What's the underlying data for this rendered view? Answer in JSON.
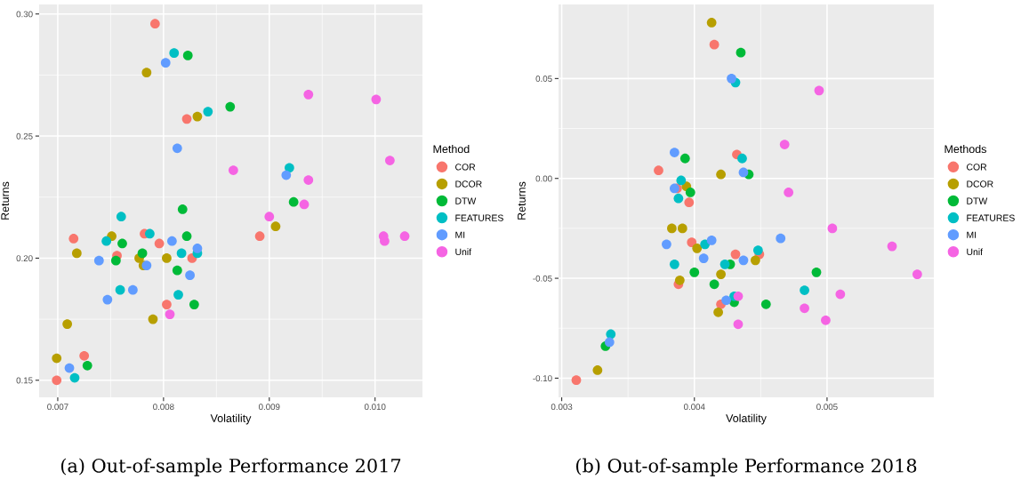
{
  "chart_data": [
    {
      "type": "scatter",
      "title": "(a) Out-of-sample Performance 2017",
      "xlabel": "Volatility",
      "ylabel": "Returns",
      "legend_title": "Method",
      "legend": "right",
      "grid": true,
      "marker": "circle",
      "xlim": [
        0.006824,
        0.010448
      ],
      "ylim": [
        0.143,
        0.3039
      ],
      "xticks": [
        {
          "value": 0.007,
          "label": "0.007"
        },
        {
          "value": 0.008,
          "label": "0.008"
        },
        {
          "value": 0.009,
          "label": "0.009"
        },
        {
          "value": 0.01,
          "label": "0.010"
        }
      ],
      "yticks": [
        {
          "value": 0.15,
          "label": "0.15"
        },
        {
          "value": 0.2,
          "label": "0.20"
        },
        {
          "value": 0.25,
          "label": "0.25"
        },
        {
          "value": 0.3,
          "label": "0.30"
        }
      ],
      "series": [
        {
          "name": "COR",
          "color": "#f8766d",
          "x": [
            0.00792,
            0.00822,
            0.00715,
            0.00782,
            0.00796,
            0.00756,
            0.00827,
            0.00803,
            0.00725,
            0.00699,
            0.00891
          ],
          "values": [
            0.296,
            0.257,
            0.208,
            0.21,
            0.206,
            0.201,
            0.2,
            0.181,
            0.16,
            0.15,
            0.209
          ]
        },
        {
          "name": "DCOR",
          "color": "#b79f00",
          "x": [
            0.00784,
            0.00832,
            0.00751,
            0.00718,
            0.00777,
            0.00781,
            0.00803,
            0.0079,
            0.00709,
            0.00699,
            0.00906
          ],
          "values": [
            0.276,
            0.258,
            0.209,
            0.202,
            0.2,
            0.197,
            0.2,
            0.175,
            0.173,
            0.159,
            0.213
          ]
        },
        {
          "name": "DTW",
          "color": "#00ba38",
          "x": [
            0.00823,
            0.00818,
            0.00822,
            0.00761,
            0.0078,
            0.00755,
            0.00813,
            0.00829,
            0.00728,
            0.00863,
            0.00923
          ],
          "values": [
            0.283,
            0.22,
            0.209,
            0.206,
            0.202,
            0.199,
            0.195,
            0.181,
            0.156,
            0.262,
            0.223
          ]
        },
        {
          "name": "FEATURES",
          "color": "#00bfc4",
          "x": [
            0.0081,
            0.00842,
            0.0076,
            0.00746,
            0.00787,
            0.00817,
            0.00832,
            0.00759,
            0.00814,
            0.00716,
            0.00919
          ],
          "values": [
            0.284,
            0.26,
            0.217,
            0.207,
            0.21,
            0.202,
            0.202,
            0.187,
            0.185,
            0.151,
            0.237
          ]
        },
        {
          "name": "MI",
          "color": "#619cff",
          "x": [
            0.00802,
            0.00813,
            0.00808,
            0.00832,
            0.00739,
            0.00784,
            0.00771,
            0.00747,
            0.00825,
            0.00711,
            0.00916
          ],
          "values": [
            0.28,
            0.245,
            0.207,
            0.204,
            0.199,
            0.197,
            0.187,
            0.183,
            0.193,
            0.155,
            0.234
          ]
        },
        {
          "name": "Unif",
          "color": "#f564e3",
          "x": [
            0.00806,
            0.00937,
            0.01001,
            0.00866,
            0.01014,
            0.00937,
            0.00933,
            0.009,
            0.01008,
            0.01009,
            0.01028
          ],
          "values": [
            0.177,
            0.267,
            0.265,
            0.236,
            0.24,
            0.232,
            0.222,
            0.217,
            0.209,
            0.207,
            0.209
          ]
        }
      ]
    },
    {
      "type": "scatter",
      "title": "(b) Out-of-sample Performance 2018",
      "xlabel": "Volatility",
      "ylabel": "Returns",
      "legend_title": "Methods",
      "legend": "right",
      "grid": true,
      "marker": "circle",
      "xlim": [
        0.002976,
        0.005805
      ],
      "ylim": [
        -0.1096,
        0.0871
      ],
      "xticks": [
        {
          "value": 0.003,
          "label": "0.003"
        },
        {
          "value": 0.004,
          "label": "0.004"
        },
        {
          "value": 0.005,
          "label": "0.005"
        }
      ],
      "yticks": [
        {
          "value": -0.1,
          "label": "-0.10"
        },
        {
          "value": -0.05,
          "label": "-0.05"
        },
        {
          "value": 0.0,
          "label": "0.00"
        },
        {
          "value": 0.05,
          "label": "0.05"
        }
      ],
      "series": [
        {
          "name": "COR",
          "color": "#f8766d",
          "x": [
            0.00415,
            0.00373,
            0.00387,
            0.00396,
            0.00398,
            0.00431,
            0.00449,
            0.00388,
            0.0042,
            0.00311,
            0.00432
          ],
          "values": [
            0.067,
            0.004,
            -0.005,
            -0.012,
            -0.032,
            -0.038,
            -0.038,
            -0.053,
            -0.063,
            -0.101,
            0.012
          ]
        },
        {
          "name": "DCOR",
          "color": "#b79f00",
          "x": [
            0.00413,
            0.0042,
            0.00394,
            0.00383,
            0.00391,
            0.00402,
            0.0042,
            0.00389,
            0.00418,
            0.00327,
            0.00446
          ],
          "values": [
            0.078,
            0.002,
            -0.004,
            -0.025,
            -0.025,
            -0.035,
            -0.048,
            -0.051,
            -0.067,
            -0.096,
            -0.041
          ]
        },
        {
          "name": "DTW",
          "color": "#00ba38",
          "x": [
            0.00435,
            0.00393,
            0.00397,
            0.00427,
            0.004,
            0.00415,
            0.0043,
            0.00333,
            0.00441,
            0.00492,
            0.00454
          ],
          "values": [
            0.063,
            0.01,
            -0.007,
            -0.043,
            -0.047,
            -0.053,
            -0.062,
            -0.084,
            0.002,
            -0.047,
            -0.063
          ]
        },
        {
          "name": "FEATURES",
          "color": "#00bfc4",
          "x": [
            0.00431,
            0.0039,
            0.00388,
            0.00408,
            0.00385,
            0.00423,
            0.0043,
            0.00337,
            0.00436,
            0.00448,
            0.00483
          ],
          "values": [
            0.048,
            -0.001,
            -0.01,
            -0.033,
            -0.043,
            -0.043,
            -0.059,
            -0.078,
            0.01,
            -0.036,
            -0.056
          ]
        },
        {
          "name": "MI",
          "color": "#619cff",
          "x": [
            0.00428,
            0.00385,
            0.00385,
            0.00379,
            0.00413,
            0.00407,
            0.00424,
            0.00336,
            0.00437,
            0.00437,
            0.00465
          ],
          "values": [
            0.05,
            0.013,
            -0.005,
            -0.033,
            -0.031,
            -0.04,
            -0.061,
            -0.082,
            0.003,
            -0.041,
            -0.03
          ]
        },
        {
          "name": "Unif",
          "color": "#f564e3",
          "x": [
            0.00433,
            0.00433,
            0.00494,
            0.00468,
            0.00471,
            0.00504,
            0.00549,
            0.00568,
            0.0051,
            0.00483,
            0.00499
          ],
          "values": [
            -0.059,
            -0.073,
            0.044,
            0.017,
            -0.007,
            -0.025,
            -0.034,
            -0.048,
            -0.058,
            -0.065,
            -0.071
          ]
        }
      ]
    }
  ]
}
